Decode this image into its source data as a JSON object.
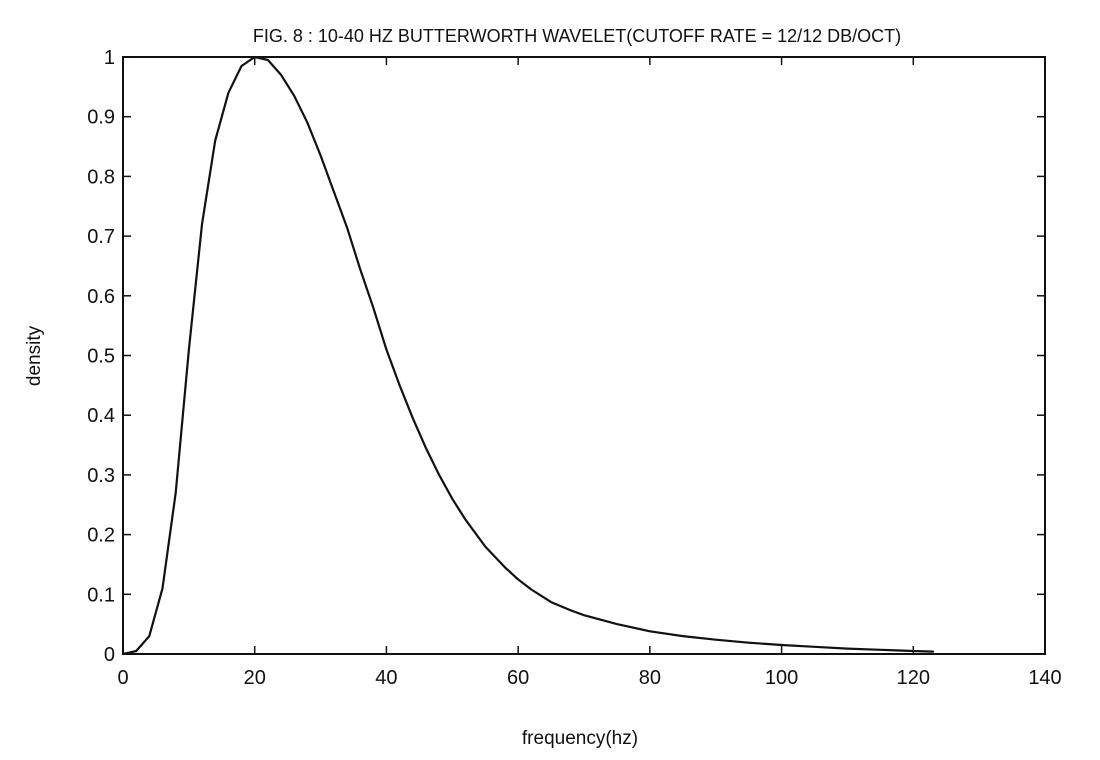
{
  "chart_data": {
    "type": "line",
    "title": "FIG. 8 : 10-40 HZ BUTTERWORTH WAVELET(CUTOFF RATE = 12/12 DB/OCT)",
    "xlabel": "frequency(hz)",
    "ylabel": "density",
    "xlim": [
      0,
      140
    ],
    "ylim": [
      0,
      1
    ],
    "xticks": [
      0,
      20,
      40,
      60,
      80,
      100,
      120,
      140
    ],
    "yticks": [
      0,
      0.1,
      0.2,
      0.3,
      0.4,
      0.5,
      0.6,
      0.7,
      0.8,
      0.9,
      1
    ],
    "xtick_labels": [
      "0",
      "20",
      "40",
      "60",
      "80",
      "100",
      "120",
      "140"
    ],
    "ytick_labels": [
      "0",
      "0.1",
      "0.2",
      "0.3",
      "0.4",
      "0.5",
      "0.6",
      "0.7",
      "0.8",
      "0.9",
      "1"
    ],
    "grid": false,
    "series": [
      {
        "x": [
          0,
          2,
          4,
          6,
          8,
          10,
          12,
          14,
          16,
          18,
          20,
          22,
          24,
          26,
          28,
          30,
          32,
          34,
          36,
          38,
          40,
          42,
          44,
          46,
          48,
          50,
          52,
          55,
          58,
          60,
          62,
          65,
          68,
          70,
          75,
          80,
          85,
          90,
          95,
          100,
          105,
          110,
          115,
          120,
          123
        ],
        "y": [
          0,
          0.005,
          0.03,
          0.11,
          0.27,
          0.51,
          0.72,
          0.86,
          0.94,
          0.985,
          1.0,
          0.995,
          0.97,
          0.935,
          0.89,
          0.835,
          0.775,
          0.715,
          0.645,
          0.58,
          0.51,
          0.45,
          0.395,
          0.345,
          0.3,
          0.26,
          0.225,
          0.18,
          0.145,
          0.125,
          0.108,
          0.087,
          0.073,
          0.065,
          0.05,
          0.038,
          0.03,
          0.024,
          0.019,
          0.015,
          0.012,
          0.009,
          0.007,
          0.005,
          0.004
        ]
      }
    ]
  }
}
